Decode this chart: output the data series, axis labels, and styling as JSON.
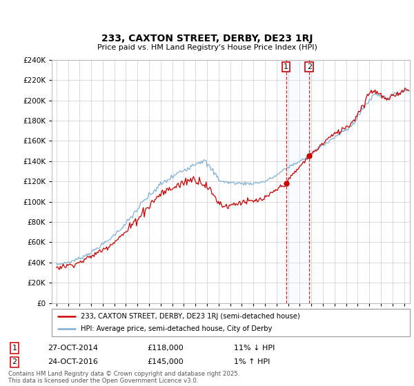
{
  "title": "233, CAXTON STREET, DERBY, DE23 1RJ",
  "subtitle": "Price paid vs. HM Land Registry's House Price Index (HPI)",
  "legend_line1": "233, CAXTON STREET, DERBY, DE23 1RJ (semi-detached house)",
  "legend_line2": "HPI: Average price, semi-detached house, City of Derby",
  "annotation1_date": "27-OCT-2014",
  "annotation1_price": "£118,000",
  "annotation1_hpi": "11% ↓ HPI",
  "annotation1_year": 2014.82,
  "annotation1_value": 118000,
  "annotation2_date": "24-OCT-2016",
  "annotation2_price": "£145,000",
  "annotation2_hpi": "1% ↑ HPI",
  "annotation2_year": 2016.82,
  "annotation2_value": 145000,
  "footer": "Contains HM Land Registry data © Crown copyright and database right 2025.\nThis data is licensed under the Open Government Licence v3.0.",
  "red_color": "#cc0000",
  "blue_color": "#7aadd4",
  "shaded_color": "#ddeeff",
  "grid_color": "#cccccc",
  "ylim_max": 240000,
  "xstart": 1995,
  "xend": 2025
}
